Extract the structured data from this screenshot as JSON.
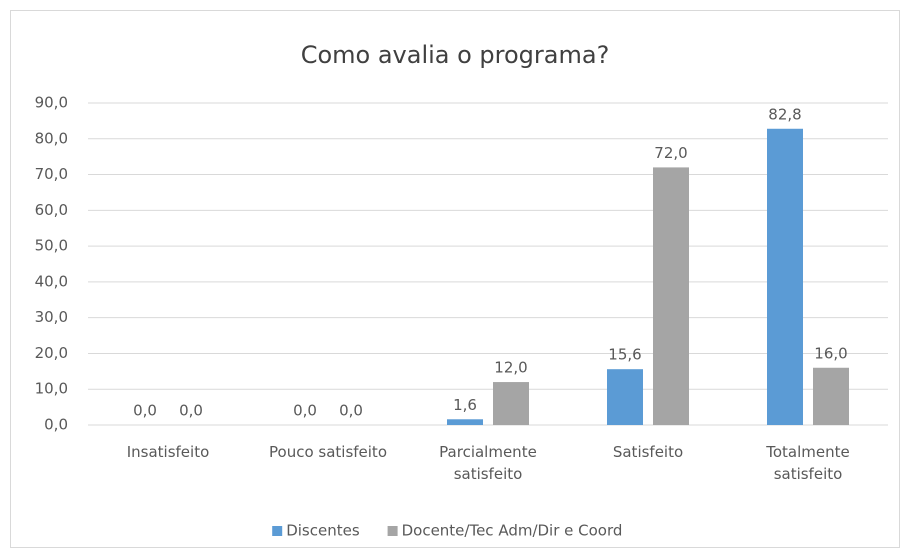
{
  "chart_data": {
    "type": "bar",
    "title": "Como avalia o programa?",
    "categories": [
      "Insatisfeito",
      "Pouco satisfeito",
      "Parcialmente satisfeito",
      "Satisfeito",
      "Totalmente satisfeito"
    ],
    "series": [
      {
        "name": "Discentes",
        "color": "#5b9bd5",
        "values": [
          0,
          0,
          1.6,
          15.6,
          82.8
        ],
        "value_labels": [
          "0,0",
          "0,0",
          "1,6",
          "15,6",
          "82,8"
        ]
      },
      {
        "name": "Docente/Tec Adm/Dir e Coord",
        "color": "#a5a5a5",
        "values": [
          0,
          0,
          12,
          72,
          16
        ],
        "value_labels": [
          "0,0",
          "0,0",
          "12,0",
          "72,0",
          "16,0"
        ]
      }
    ],
    "ylim": [
      0,
      90
    ],
    "yticks": [
      {
        "value": 0,
        "label": "0,0"
      },
      {
        "value": 10,
        "label": "10,0"
      },
      {
        "value": 20,
        "label": "20,0"
      },
      {
        "value": 30,
        "label": "30,0"
      },
      {
        "value": 40,
        "label": "40,0"
      },
      {
        "value": 50,
        "label": "50,0"
      },
      {
        "value": 60,
        "label": "60,0"
      },
      {
        "value": 70,
        "label": "70,0"
      },
      {
        "value": 80,
        "label": "80,0"
      },
      {
        "value": 90,
        "label": "90,0"
      }
    ],
    "grid": true,
    "legend": "bottom"
  }
}
